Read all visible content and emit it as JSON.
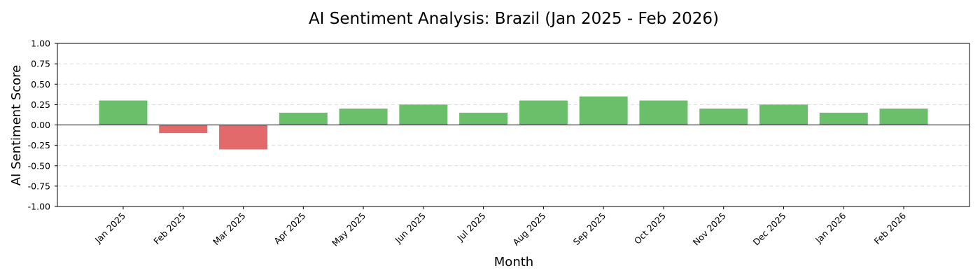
{
  "chart_data": {
    "type": "bar",
    "title": "AI Sentiment Analysis: Brazil (Jan 2025 - Feb 2026)",
    "xlabel": "Month",
    "ylabel": "AI Sentiment Score",
    "categories": [
      "Jan 2025",
      "Feb 2025",
      "Mar 2025",
      "Apr 2025",
      "May 2025",
      "Jun 2025",
      "Jul 2025",
      "Aug 2025",
      "Sep 2025",
      "Oct 2025",
      "Nov 2025",
      "Dec 2025",
      "Jan 2026",
      "Feb 2026"
    ],
    "values": [
      0.3,
      -0.1,
      -0.3,
      0.15,
      0.2,
      0.25,
      0.15,
      0.3,
      0.35,
      0.3,
      0.2,
      0.25,
      0.15,
      0.2
    ],
    "ylim": [
      -1.0,
      1.0
    ],
    "yticks": [
      "1.00",
      "0.75",
      "0.50",
      "0.25",
      "0.00",
      "-0.25",
      "-0.50",
      "-0.75",
      "-1.00"
    ],
    "grid": "y-dashed",
    "colors": {
      "positive": "#6bbf6b",
      "negative": "#e36a6a"
    }
  }
}
